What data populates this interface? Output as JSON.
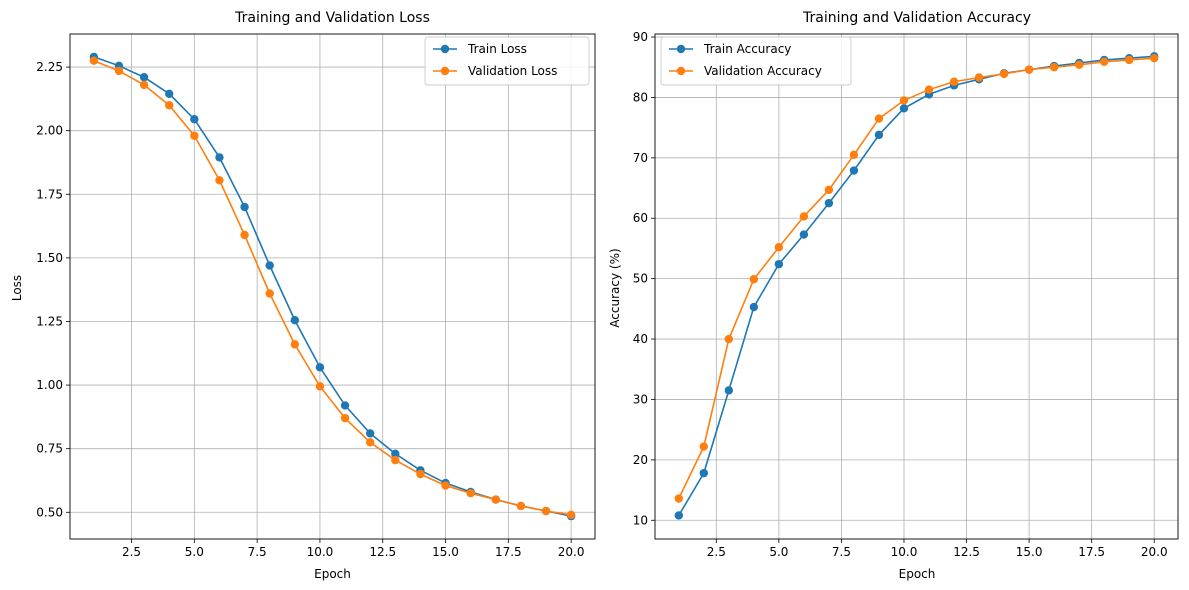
{
  "chart_data": [
    {
      "type": "line",
      "title": "Training and Validation Loss",
      "xlabel": "Epoch",
      "ylabel": "Loss",
      "xlim": [
        0.05,
        20.95
      ],
      "ylim": [
        0.395,
        2.38
      ],
      "xticks": [
        2.5,
        5.0,
        7.5,
        10.0,
        12.5,
        15.0,
        17.5,
        20.0
      ],
      "xtick_labels": [
        "2.5",
        "5.0",
        "7.5",
        "10.0",
        "12.5",
        "15.0",
        "17.5",
        "20.0"
      ],
      "yticks": [
        0.5,
        0.75,
        1.0,
        1.25,
        1.5,
        1.75,
        2.0,
        2.25
      ],
      "ytick_labels": [
        "0.50",
        "0.75",
        "1.00",
        "1.25",
        "1.50",
        "1.75",
        "2.00",
        "2.25"
      ],
      "grid": true,
      "legend_position": "top-right",
      "x": [
        1,
        2,
        3,
        4,
        5,
        6,
        7,
        8,
        9,
        10,
        11,
        12,
        13,
        14,
        15,
        16,
        17,
        18,
        19,
        20
      ],
      "series": [
        {
          "name": "Train Loss",
          "color": "#1f77b4",
          "values": [
            2.29,
            2.255,
            2.21,
            2.145,
            2.045,
            1.895,
            1.7,
            1.47,
            1.255,
            1.07,
            0.92,
            0.81,
            0.73,
            0.665,
            0.615,
            0.58,
            0.55,
            0.525,
            0.505,
            0.485
          ]
        },
        {
          "name": "Validation Loss",
          "color": "#ff7f0e",
          "values": [
            2.275,
            2.235,
            2.18,
            2.1,
            1.98,
            1.805,
            1.59,
            1.36,
            1.16,
            0.995,
            0.87,
            0.775,
            0.705,
            0.65,
            0.605,
            0.575,
            0.55,
            0.525,
            0.505,
            0.49
          ]
        }
      ]
    },
    {
      "type": "line",
      "title": "Training and Validation Accuracy",
      "xlabel": "Epoch",
      "ylabel": "Accuracy (%)",
      "xlim": [
        0.05,
        20.95
      ],
      "ylim": [
        6.9,
        90.5
      ],
      "xticks": [
        2.5,
        5.0,
        7.5,
        10.0,
        12.5,
        15.0,
        17.5,
        20.0
      ],
      "xtick_labels": [
        "2.5",
        "5.0",
        "7.5",
        "10.0",
        "12.5",
        "15.0",
        "17.5",
        "20.0"
      ],
      "yticks": [
        10,
        20,
        30,
        40,
        50,
        60,
        70,
        80,
        90
      ],
      "ytick_labels": [
        "10",
        "20",
        "30",
        "40",
        "50",
        "60",
        "70",
        "80",
        "90"
      ],
      "grid": true,
      "legend_position": "top-left",
      "x": [
        1,
        2,
        3,
        4,
        5,
        6,
        7,
        8,
        9,
        10,
        11,
        12,
        13,
        14,
        15,
        16,
        17,
        18,
        19,
        20
      ],
      "series": [
        {
          "name": "Train Accuracy",
          "color": "#1f77b4",
          "values": [
            10.8,
            17.8,
            31.5,
            45.3,
            52.4,
            57.3,
            62.5,
            67.9,
            73.8,
            78.2,
            80.5,
            82.0,
            83.0,
            84.0,
            84.6,
            85.2,
            85.7,
            86.2,
            86.5,
            86.8
          ]
        },
        {
          "name": "Validation Accuracy",
          "color": "#ff7f0e",
          "values": [
            13.6,
            22.2,
            40.0,
            49.9,
            55.2,
            60.3,
            64.7,
            70.5,
            76.5,
            79.5,
            81.3,
            82.6,
            83.3,
            83.9,
            84.6,
            85.0,
            85.4,
            85.9,
            86.2,
            86.5
          ]
        }
      ]
    }
  ]
}
